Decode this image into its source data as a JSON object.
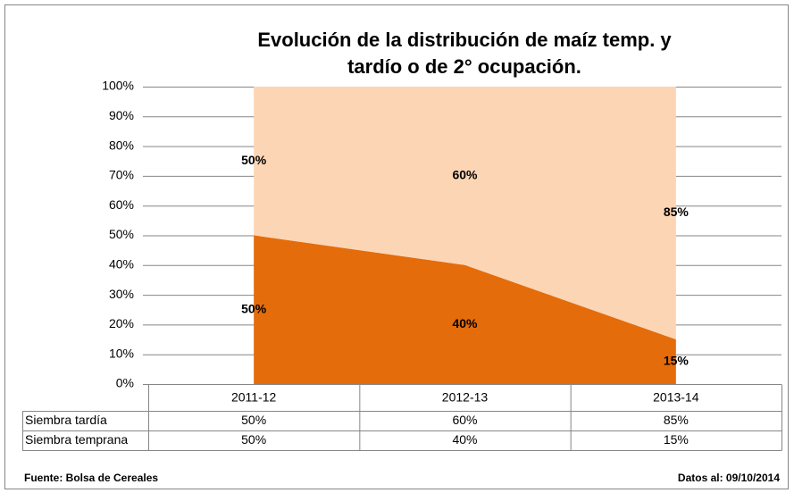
{
  "chart_data": {
    "type": "stacked_area",
    "title": [
      "Evolución de la distribución de maíz temp. y",
      "tardío o de 2° ocupación."
    ],
    "categories": [
      "2011-12",
      "2012-13",
      "2013-14"
    ],
    "series": [
      {
        "name": "Siembra temprana",
        "color": "#e46c0a",
        "values": [
          50,
          40,
          15
        ],
        "value_labels": [
          "50%",
          "40%",
          "15%"
        ]
      },
      {
        "name": "Siembra tardía",
        "color": "#fcd5b5",
        "values": [
          50,
          60,
          85
        ],
        "value_labels": [
          "50%",
          "60%",
          "85%"
        ]
      }
    ],
    "table_order": [
      1,
      0
    ],
    "ylim": [
      0,
      100
    ],
    "yticks": [
      {
        "value": 0,
        "label": "0%"
      },
      {
        "value": 10,
        "label": "10%"
      },
      {
        "value": 20,
        "label": "20%"
      },
      {
        "value": 30,
        "label": "30%"
      },
      {
        "value": 40,
        "label": "40%"
      },
      {
        "value": 50,
        "label": "50%"
      },
      {
        "value": 60,
        "label": "60%"
      },
      {
        "value": 70,
        "label": "70%"
      },
      {
        "value": 80,
        "label": "80%"
      },
      {
        "value": 90,
        "label": "90%"
      },
      {
        "value": 100,
        "label": "100%"
      }
    ],
    "grid": true,
    "source": "Fuente: Bolsa de Cereales",
    "date_note": "Datos al: 09/10/2014"
  }
}
